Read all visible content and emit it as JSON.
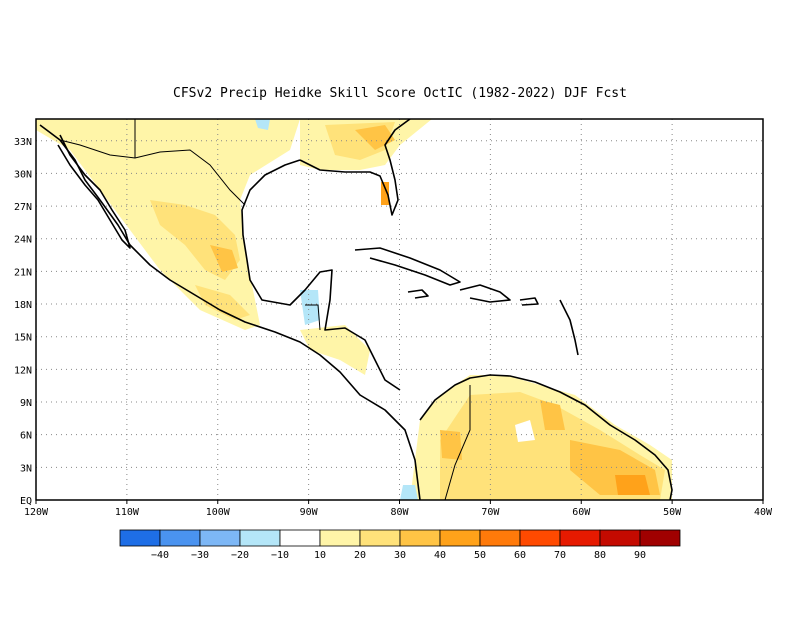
{
  "title": "CFSv2 Precip Heidke Skill Score OctIC (1982-2022) DJF Fcst",
  "map": {
    "lon_range": [
      -120,
      -40
    ],
    "lat_range": [
      0,
      35
    ],
    "grid": "dotted",
    "x_ticks": [
      {
        "lon": -120,
        "label": "120W"
      },
      {
        "lon": -110,
        "label": "110W"
      },
      {
        "lon": -100,
        "label": "100W"
      },
      {
        "lon": -90,
        "label": "90W"
      },
      {
        "lon": -80,
        "label": "80W"
      },
      {
        "lon": -70,
        "label": "70W"
      },
      {
        "lon": -60,
        "label": "60W"
      },
      {
        "lon": -50,
        "label": "50W"
      },
      {
        "lon": -40,
        "label": "40W"
      }
    ],
    "y_ticks": [
      {
        "lat": 0,
        "label": "EQ"
      },
      {
        "lat": 3,
        "label": "3N"
      },
      {
        "lat": 6,
        "label": "6N"
      },
      {
        "lat": 9,
        "label": "9N"
      },
      {
        "lat": 12,
        "label": "12N"
      },
      {
        "lat": 15,
        "label": "15N"
      },
      {
        "lat": 18,
        "label": "18N"
      },
      {
        "lat": 21,
        "label": "21N"
      },
      {
        "lat": 24,
        "label": "24N"
      },
      {
        "lat": 27,
        "label": "27N"
      },
      {
        "lat": 30,
        "label": "30N"
      },
      {
        "lat": 33,
        "label": "33N"
      }
    ]
  },
  "colorbar": {
    "colors": [
      "#1e6ee6",
      "#4a93f0",
      "#7db7f6",
      "#b4e6f8",
      "#ffffff",
      "#fff5a8",
      "#ffe27a",
      "#ffc445",
      "#ffa21a",
      "#ff7a0a",
      "#ff4a00",
      "#e61a00",
      "#c40a00",
      "#a00000"
    ],
    "labels": [
      "−40",
      "−30",
      "−20",
      "−10",
      "10",
      "20",
      "30",
      "40",
      "50",
      "60",
      "70",
      "80",
      "90"
    ]
  }
}
